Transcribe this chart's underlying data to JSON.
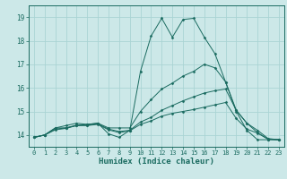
{
  "xlabel": "Humidex (Indice chaleur)",
  "background_color": "#cce8e8",
  "line_color": "#1a6b60",
  "xlim": [
    -0.5,
    23.5
  ],
  "ylim": [
    13.5,
    19.5
  ],
  "yticks": [
    14,
    15,
    16,
    17,
    18,
    19
  ],
  "xticks": [
    0,
    1,
    2,
    3,
    4,
    5,
    6,
    7,
    8,
    9,
    10,
    11,
    12,
    13,
    14,
    15,
    16,
    17,
    18,
    19,
    20,
    21,
    22,
    23
  ],
  "grid_color": "#aad4d4",
  "tick_color": "#1a6b60",
  "label_color": "#1a6b60",
  "lines": [
    {
      "x": [
        0,
        1,
        2,
        3,
        4,
        5,
        6,
        7,
        8,
        9,
        10,
        11,
        12,
        13,
        14,
        15,
        16,
        17,
        18,
        19,
        20,
        21,
        22,
        23
      ],
      "y": [
        13.9,
        14.0,
        14.3,
        14.3,
        14.4,
        14.45,
        14.5,
        14.05,
        13.9,
        14.2,
        16.7,
        18.2,
        18.95,
        18.15,
        18.9,
        18.95,
        18.15,
        17.45,
        16.25,
        15.0,
        14.2,
        13.8,
        13.8,
        13.8
      ]
    },
    {
      "x": [
        0,
        1,
        2,
        3,
        4,
        5,
        6,
        7,
        8,
        9,
        10,
        11,
        12,
        13,
        14,
        15,
        16,
        17,
        18,
        19,
        20,
        21,
        22,
        23
      ],
      "y": [
        13.9,
        14.0,
        14.3,
        14.4,
        14.5,
        14.45,
        14.5,
        14.3,
        14.3,
        14.3,
        15.0,
        15.5,
        15.95,
        16.2,
        16.5,
        16.7,
        17.0,
        16.85,
        16.25,
        15.05,
        14.5,
        14.1,
        13.82,
        13.8
      ]
    },
    {
      "x": [
        0,
        1,
        2,
        3,
        4,
        5,
        6,
        7,
        8,
        9,
        10,
        11,
        12,
        13,
        14,
        15,
        16,
        17,
        18,
        19,
        20,
        21,
        22,
        23
      ],
      "y": [
        13.9,
        14.0,
        14.25,
        14.3,
        14.42,
        14.42,
        14.48,
        14.25,
        14.15,
        14.2,
        14.55,
        14.75,
        15.05,
        15.25,
        15.45,
        15.62,
        15.78,
        15.88,
        15.95,
        15.05,
        14.5,
        14.2,
        13.85,
        13.8
      ]
    },
    {
      "x": [
        0,
        1,
        2,
        3,
        4,
        5,
        6,
        7,
        8,
        9,
        10,
        11,
        12,
        13,
        14,
        15,
        16,
        17,
        18,
        19,
        20,
        21,
        22,
        23
      ],
      "y": [
        13.9,
        14.0,
        14.22,
        14.28,
        14.4,
        14.4,
        14.45,
        14.22,
        14.1,
        14.18,
        14.45,
        14.6,
        14.8,
        14.92,
        15.0,
        15.08,
        15.18,
        15.28,
        15.38,
        14.7,
        14.25,
        14.08,
        13.82,
        13.8
      ]
    }
  ]
}
